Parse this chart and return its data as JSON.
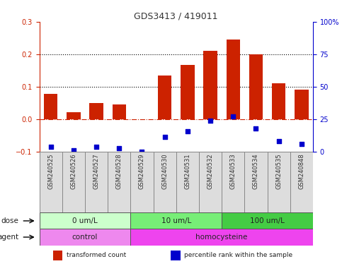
{
  "title": "GDS3413 / 419011",
  "samples": [
    "GSM240525",
    "GSM240526",
    "GSM240527",
    "GSM240528",
    "GSM240529",
    "GSM240530",
    "GSM240531",
    "GSM240532",
    "GSM240533",
    "GSM240534",
    "GSM240535",
    "GSM240848"
  ],
  "red_bars": [
    0.077,
    0.022,
    0.05,
    0.045,
    -0.001,
    0.135,
    0.168,
    0.21,
    0.245,
    0.2,
    0.11,
    0.09
  ],
  "blue_squares": [
    -0.085,
    -0.095,
    -0.085,
    -0.09,
    -0.1,
    -0.055,
    -0.038,
    -0.005,
    0.008,
    -0.028,
    -0.068,
    -0.075
  ],
  "ylim_left": [
    -0.1,
    0.3
  ],
  "yticks_left": [
    -0.1,
    0.0,
    0.1,
    0.2,
    0.3
  ],
  "ylim_right": [
    0,
    100
  ],
  "yticks_right": [
    0,
    25,
    50,
    75,
    100
  ],
  "yticklabels_right": [
    "0",
    "25",
    "50",
    "75",
    "100%"
  ],
  "dose_groups": [
    {
      "label": "0 um/L",
      "start": 0,
      "end": 4,
      "color": "#ccffcc"
    },
    {
      "label": "10 um/L",
      "start": 4,
      "end": 8,
      "color": "#77ee77"
    },
    {
      "label": "100 um/L",
      "start": 8,
      "end": 12,
      "color": "#44cc44"
    }
  ],
  "agent_groups": [
    {
      "label": "control",
      "start": 0,
      "end": 4,
      "color": "#ee88ee"
    },
    {
      "label": "homocysteine",
      "start": 4,
      "end": 12,
      "color": "#ee44ee"
    }
  ],
  "bar_color": "#cc2200",
  "square_color": "#0000cc",
  "zero_line_color": "#cc2200",
  "dotted_line_color": "#000000",
  "bg_color": "#ffffff",
  "sample_box_color": "#dddddd",
  "legend_items": [
    {
      "color": "#cc2200",
      "label": "transformed count"
    },
    {
      "color": "#0000cc",
      "label": "percentile rank within the sample"
    }
  ],
  "dose_row_label": "dose",
  "agent_row_label": "agent"
}
